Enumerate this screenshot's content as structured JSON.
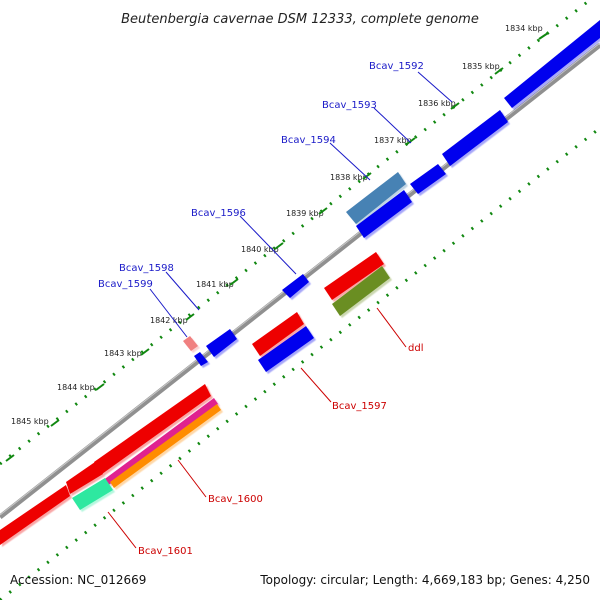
{
  "title": "Beutenbergia cavernae DSM 12333, complete genome",
  "footer": {
    "accession": "Accession: NC_012669",
    "summary": "Topology: circular; Length: 4,669,183 bp; Genes: 4,250"
  },
  "colors": {
    "backbone": "#808080",
    "tick": "#118811",
    "plus_label": "#1a1ac8",
    "minus_label": "#cc0000",
    "cds_blue": "#0000ee",
    "cds_red": "#ee0000",
    "steelblue": "#4682b4",
    "olive": "#6b8e23",
    "magenta": "#e0208f",
    "orange": "#ff8c00",
    "mint": "#2fe8a0",
    "pink": "#f08080"
  },
  "kbp_labels": [
    "1834 kbp",
    "1835 kbp",
    "1836 kbp",
    "1837 kbp",
    "1838 kbp",
    "1839 kbp",
    "1840 kbp",
    "1841 kbp",
    "1842 kbp",
    "1843 kbp",
    "1844 kbp",
    "1845 kbp"
  ],
  "genes": [
    {
      "label": "Bcav_1592",
      "strand": "plus"
    },
    {
      "label": "Bcav_1593",
      "strand": "plus"
    },
    {
      "label": "Bcav_1594",
      "strand": "plus"
    },
    {
      "label": "Bcav_1596",
      "strand": "plus"
    },
    {
      "label": "Bcav_1598",
      "strand": "plus"
    },
    {
      "label": "Bcav_1599",
      "strand": "plus"
    },
    {
      "label": "ddl",
      "strand": "minus"
    },
    {
      "label": "Bcav_1597",
      "strand": "minus"
    },
    {
      "label": "Bcav_1600",
      "strand": "minus"
    },
    {
      "label": "Bcav_1601",
      "strand": "minus"
    }
  ]
}
